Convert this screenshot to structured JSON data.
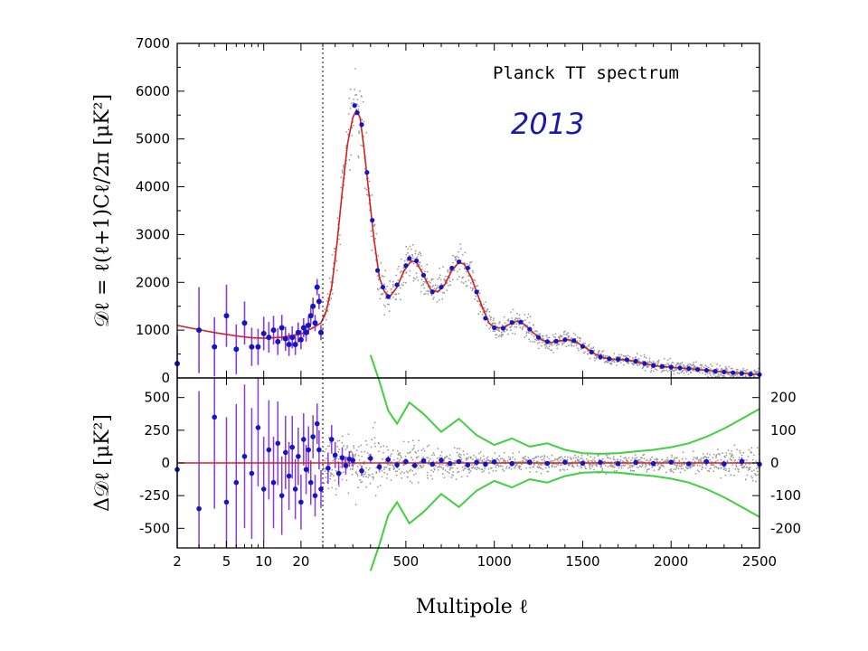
{
  "chart_data": [
    {
      "type": "scatter",
      "panel": "top",
      "title": "Planck TT spectrum",
      "annotation": "2013",
      "ylabel": "𝒟ℓ = ℓ(ℓ+1)Cℓ/2π [μK²]",
      "xlabel": "Multipole ℓ",
      "xscale": "log for ℓ < 30, linear for ℓ ≥ 30",
      "xlim": [
        2,
        2500
      ],
      "ylim": [
        0,
        7000
      ],
      "y_ticks": [
        "0",
        "1000",
        "2000",
        "3000",
        "4000",
        "5000",
        "6000",
        "7000"
      ],
      "x_ticks": [
        "2",
        "5",
        "10",
        "20",
        "500",
        "1000",
        "1500",
        "2000",
        "2500"
      ],
      "x_tick_values": [
        2,
        5,
        10,
        20,
        500,
        1000,
        1500,
        2000,
        2500
      ],
      "colors": {
        "binned": "#1515c8",
        "errorbar": "#8a3ad8",
        "model": "#d62020",
        "unbinned": "#9a9a9a",
        "divider": "#000000"
      },
      "model_curve": [
        [
          2,
          1100
        ],
        [
          3,
          1010
        ],
        [
          4,
          950
        ],
        [
          6,
          880
        ],
        [
          8,
          840
        ],
        [
          10,
          830
        ],
        [
          14,
          850
        ],
        [
          20,
          920
        ],
        [
          25,
          1050
        ],
        [
          29,
          1150
        ],
        [
          50,
          1400
        ],
        [
          80,
          1900
        ],
        [
          110,
          2800
        ],
        [
          140,
          3900
        ],
        [
          170,
          4900
        ],
        [
          200,
          5450
        ],
        [
          220,
          5600
        ],
        [
          240,
          5450
        ],
        [
          260,
          4900
        ],
        [
          290,
          3900
        ],
        [
          320,
          2900
        ],
        [
          350,
          2100
        ],
        [
          380,
          1800
        ],
        [
          410,
          1700
        ],
        [
          450,
          1900
        ],
        [
          490,
          2250
        ],
        [
          530,
          2450
        ],
        [
          560,
          2420
        ],
        [
          600,
          2150
        ],
        [
          640,
          1850
        ],
        [
          680,
          1800
        ],
        [
          720,
          1950
        ],
        [
          760,
          2250
        ],
        [
          800,
          2420
        ],
        [
          830,
          2380
        ],
        [
          870,
          2100
        ],
        [
          920,
          1600
        ],
        [
          970,
          1150
        ],
        [
          1000,
          1050
        ],
        [
          1050,
          1050
        ],
        [
          1100,
          1150
        ],
        [
          1130,
          1190
        ],
        [
          1170,
          1120
        ],
        [
          1220,
          950
        ],
        [
          1270,
          790
        ],
        [
          1320,
          740
        ],
        [
          1370,
          780
        ],
        [
          1420,
          800
        ],
        [
          1460,
          760
        ],
        [
          1520,
          620
        ],
        [
          1570,
          500
        ],
        [
          1620,
          420
        ],
        [
          1680,
          390
        ],
        [
          1740,
          380
        ],
        [
          1800,
          340
        ],
        [
          1860,
          290
        ],
        [
          1920,
          250
        ],
        [
          1980,
          230
        ],
        [
          2050,
          210
        ],
        [
          2120,
          190
        ],
        [
          2200,
          160
        ],
        [
          2300,
          125
        ],
        [
          2400,
          95
        ],
        [
          2500,
          70
        ]
      ],
      "binned_lowl": [
        [
          2,
          300,
          600
        ],
        [
          3,
          1000,
          900
        ],
        [
          4,
          650,
          620
        ],
        [
          5,
          1300,
          650
        ],
        [
          6,
          600,
          520
        ],
        [
          7,
          1150,
          450
        ],
        [
          8,
          650,
          400
        ],
        [
          9,
          650,
          380
        ],
        [
          10,
          930,
          350
        ],
        [
          11,
          850,
          320
        ],
        [
          12,
          1000,
          300
        ],
        [
          13,
          760,
          280
        ],
        [
          14,
          1050,
          270
        ],
        [
          15,
          820,
          250
        ],
        [
          16,
          700,
          240
        ],
        [
          17,
          850,
          230
        ],
        [
          18,
          700,
          220
        ],
        [
          19,
          950,
          210
        ],
        [
          20,
          800,
          200
        ],
        [
          21,
          1050,
          200
        ],
        [
          22,
          950,
          190
        ],
        [
          23,
          1100,
          190
        ],
        [
          24,
          1300,
          180
        ],
        [
          25,
          1500,
          180
        ],
        [
          26,
          1150,
          170
        ],
        [
          27,
          1900,
          170
        ],
        [
          28,
          1600,
          160
        ],
        [
          29,
          950,
          160
        ]
      ],
      "binned_highl": [
        [
          210,
          5700
        ],
        [
          225,
          5550
        ],
        [
          250,
          5300
        ],
        [
          280,
          4300
        ],
        [
          310,
          3300
        ],
        [
          340,
          2250
        ],
        [
          370,
          1900
        ],
        [
          400,
          1700
        ],
        [
          450,
          1950
        ],
        [
          500,
          2350
        ],
        [
          520,
          2500
        ],
        [
          560,
          2450
        ],
        [
          600,
          2150
        ],
        [
          650,
          1800
        ],
        [
          700,
          1900
        ],
        [
          760,
          2300
        ],
        [
          800,
          2430
        ],
        [
          850,
          2300
        ],
        [
          900,
          1800
        ],
        [
          950,
          1250
        ],
        [
          1000,
          1050
        ],
        [
          1050,
          1040
        ],
        [
          1100,
          1160
        ],
        [
          1150,
          1170
        ],
        [
          1200,
          1020
        ],
        [
          1250,
          850
        ],
        [
          1300,
          760
        ],
        [
          1350,
          770
        ],
        [
          1400,
          800
        ],
        [
          1450,
          780
        ],
        [
          1500,
          660
        ],
        [
          1550,
          540
        ],
        [
          1600,
          440
        ],
        [
          1650,
          400
        ],
        [
          1700,
          390
        ],
        [
          1750,
          380
        ],
        [
          1800,
          350
        ],
        [
          1850,
          300
        ],
        [
          1900,
          260
        ],
        [
          1950,
          240
        ],
        [
          2000,
          225
        ],
        [
          2050,
          210
        ],
        [
          2100,
          195
        ],
        [
          2150,
          175
        ],
        [
          2200,
          160
        ],
        [
          2250,
          140
        ],
        [
          2300,
          125
        ],
        [
          2350,
          110
        ],
        [
          2400,
          95
        ],
        [
          2450,
          80
        ],
        [
          2500,
          70
        ]
      ]
    },
    {
      "type": "scatter",
      "panel": "bottom",
      "ylabel": "Δ𝒟ℓ [μK²]",
      "ylim": [
        -650,
        650
      ],
      "y_ticks": [
        "-500",
        "-250",
        "0",
        "250",
        "500"
      ],
      "y_tick_values": [
        -500,
        -250,
        0,
        250,
        500
      ],
      "right_axis_ylim": [
        -260,
        260
      ],
      "right_axis_ticks": [
        "-200",
        "-100",
        "0",
        "100",
        "200"
      ],
      "right_axis_tick_values": [
        -200,
        -100,
        0,
        100,
        200
      ],
      "colors": {
        "envelope": "#3fd13f",
        "zero_line": "#d62020",
        "residual": "#1515c8",
        "errorbar": "#8a3ad8",
        "unbinned": "#9a9a9a"
      },
      "envelope_upper": [
        [
          300,
          330
        ],
        [
          350,
          250
        ],
        [
          400,
          160
        ],
        [
          450,
          120
        ],
        [
          520,
          185
        ],
        [
          600,
          150
        ],
        [
          700,
          95
        ],
        [
          800,
          135
        ],
        [
          900,
          85
        ],
        [
          1000,
          55
        ],
        [
          1100,
          75
        ],
        [
          1200,
          50
        ],
        [
          1300,
          60
        ],
        [
          1400,
          40
        ],
        [
          1500,
          30
        ],
        [
          1600,
          28
        ],
        [
          1700,
          30
        ],
        [
          1800,
          35
        ],
        [
          1900,
          40
        ],
        [
          2000,
          48
        ],
        [
          2100,
          60
        ],
        [
          2200,
          80
        ],
        [
          2300,
          105
        ],
        [
          2400,
          135
        ],
        [
          2500,
          165
        ]
      ],
      "residuals_lowl": [
        [
          2,
          -50,
          1100
        ],
        [
          3,
          -350,
          900
        ],
        [
          4,
          350,
          700
        ],
        [
          5,
          -300,
          650
        ],
        [
          6,
          -150,
          600
        ],
        [
          7,
          50,
          550
        ],
        [
          8,
          -80,
          500
        ],
        [
          9,
          270,
          450
        ],
        [
          10,
          -200,
          400
        ],
        [
          11,
          100,
          380
        ],
        [
          12,
          -150,
          350
        ],
        [
          13,
          150,
          320
        ],
        [
          14,
          -250,
          300
        ],
        [
          15,
          80,
          280
        ],
        [
          16,
          -100,
          260
        ],
        [
          17,
          120,
          240
        ],
        [
          18,
          -200,
          230
        ],
        [
          19,
          50,
          220
        ],
        [
          20,
          -300,
          210
        ],
        [
          21,
          180,
          200
        ],
        [
          22,
          -50,
          190
        ],
        [
          23,
          100,
          180
        ],
        [
          24,
          -150,
          170
        ],
        [
          25,
          200,
          165
        ],
        [
          26,
          -250,
          160
        ],
        [
          27,
          300,
          155
        ],
        [
          28,
          100,
          150
        ],
        [
          29,
          -200,
          145
        ]
      ],
      "residuals_highl": [
        [
          60,
          -40,
          120
        ],
        [
          80,
          180,
          110
        ],
        [
          100,
          60,
          100
        ],
        [
          120,
          -80,
          90
        ],
        [
          140,
          40,
          80
        ],
        [
          160,
          -20,
          70
        ],
        [
          180,
          30,
          60
        ],
        [
          200,
          20,
          50
        ],
        [
          250,
          -60,
          40
        ],
        [
          300,
          35,
          35
        ],
        [
          350,
          -30,
          30
        ],
        [
          400,
          25,
          28
        ],
        [
          450,
          -15,
          25
        ],
        [
          500,
          10,
          22
        ],
        [
          550,
          -20,
          20
        ],
        [
          600,
          15,
          18
        ],
        [
          650,
          -10,
          17
        ],
        [
          700,
          20,
          16
        ],
        [
          750,
          -5,
          15
        ],
        [
          800,
          10,
          14
        ],
        [
          850,
          -15,
          13
        ],
        [
          900,
          5,
          12
        ],
        [
          950,
          -10,
          12
        ],
        [
          1000,
          8,
          11
        ],
        [
          1100,
          -5,
          10
        ],
        [
          1200,
          6,
          9
        ],
        [
          1300,
          -4,
          9
        ],
        [
          1400,
          5,
          8
        ],
        [
          1500,
          -3,
          8
        ],
        [
          1600,
          4,
          8
        ],
        [
          1700,
          -6,
          9
        ],
        [
          1800,
          3,
          10
        ],
        [
          1900,
          -5,
          11
        ],
        [
          2000,
          6,
          13
        ],
        [
          2100,
          -7,
          16
        ],
        [
          2200,
          10,
          20
        ],
        [
          2300,
          -8,
          25
        ],
        [
          2400,
          12,
          30
        ],
        [
          2500,
          -10,
          36
        ]
      ]
    }
  ]
}
